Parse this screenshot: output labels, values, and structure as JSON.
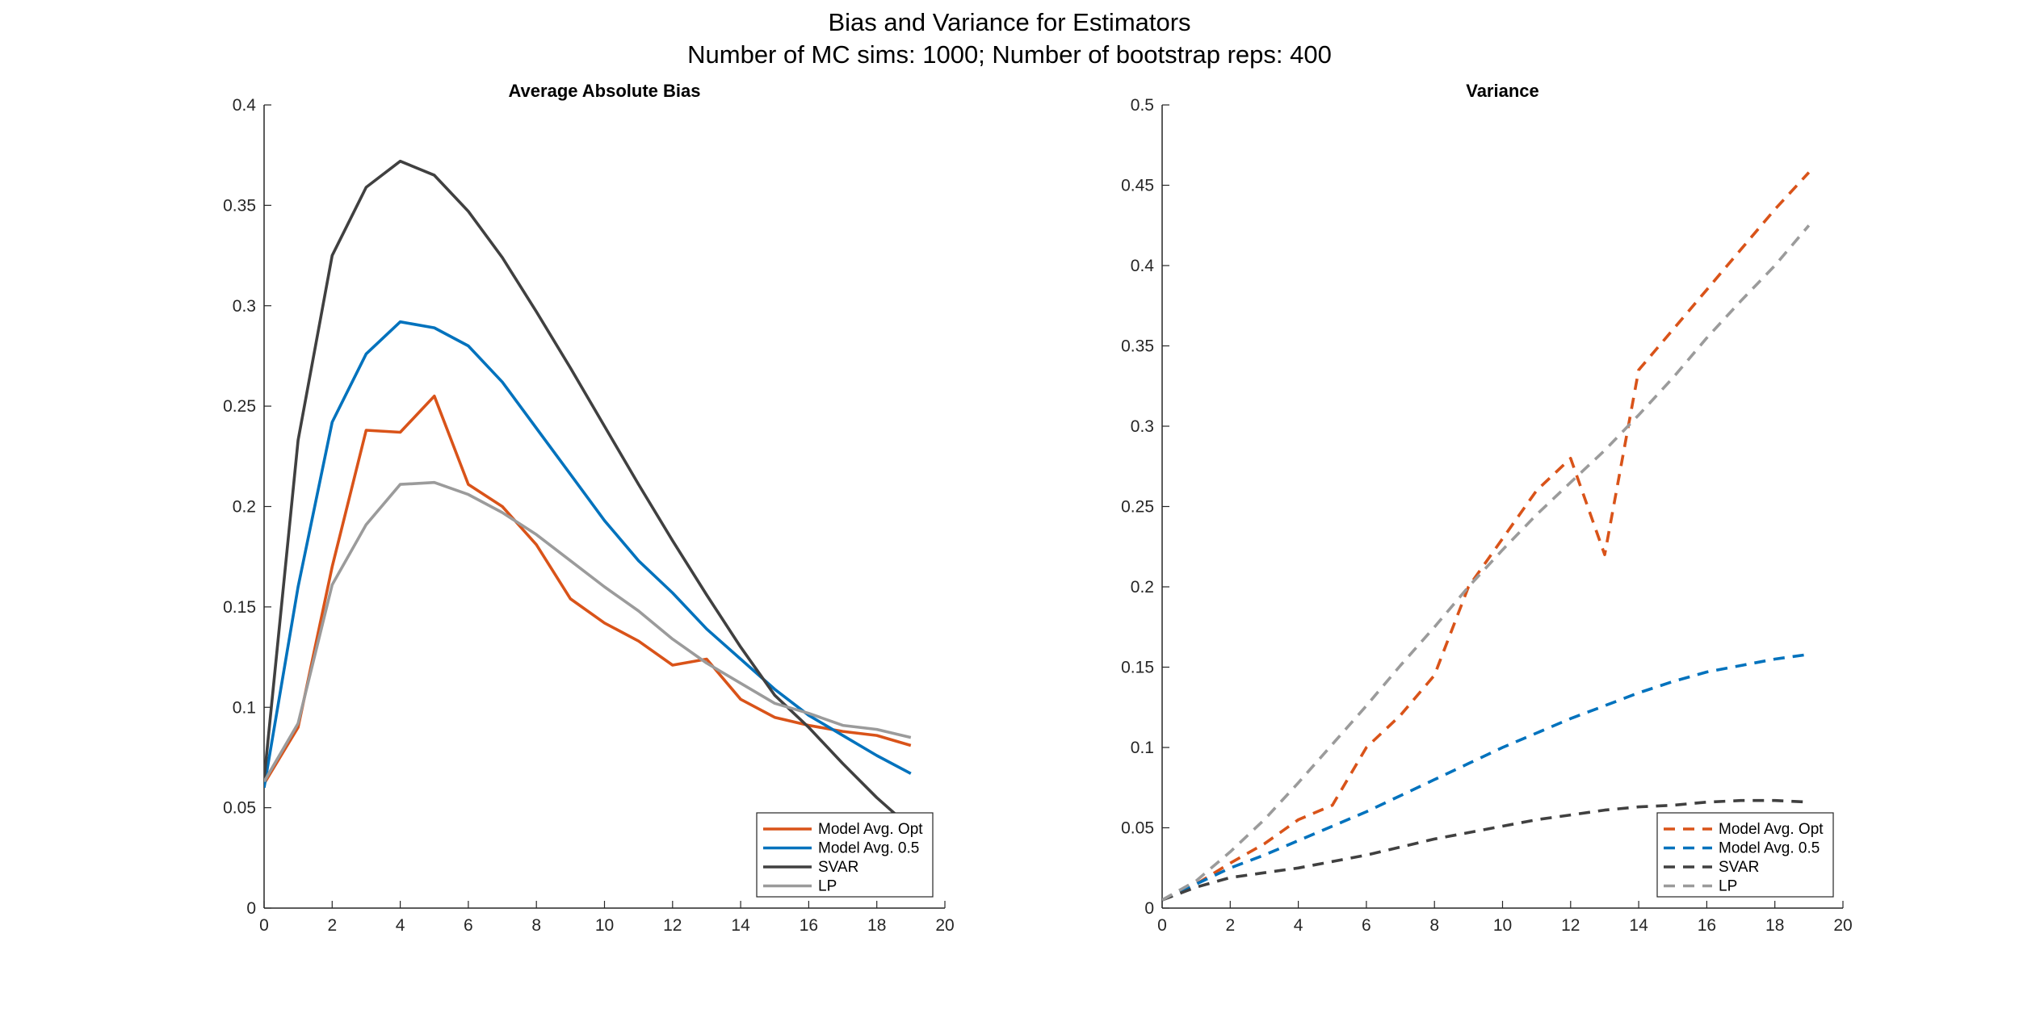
{
  "figure": {
    "title_line1": "Bias and Variance for Estimators",
    "title_line2": "Number of MC sims: 1000; Number of bootstrap reps: 400"
  },
  "colors": {
    "model_avg_opt": "#D95319",
    "model_avg_05": "#0072BD",
    "svar": "#404040",
    "lp": "#9B9B9B",
    "axis": "#262626"
  },
  "chart_data": [
    {
      "type": "line",
      "title": "Average Absolute Bias",
      "xlabel": "",
      "ylabel": "",
      "xlim": [
        0,
        20
      ],
      "ylim": [
        0,
        0.4
      ],
      "xticks": [
        0,
        2,
        4,
        6,
        8,
        10,
        12,
        14,
        16,
        18,
        20
      ],
      "yticks": [
        0,
        0.05,
        0.1,
        0.15,
        0.2,
        0.25,
        0.3,
        0.35,
        0.4
      ],
      "line_style": "solid",
      "legend_position": "bottom-right",
      "x": [
        0,
        1,
        2,
        3,
        4,
        5,
        6,
        7,
        8,
        9,
        10,
        11,
        12,
        13,
        14,
        15,
        16,
        17,
        18,
        19
      ],
      "series": [
        {
          "name": "Model Avg. Opt",
          "color": "#D95319",
          "values": [
            0.062,
            0.09,
            0.17,
            0.238,
            0.237,
            0.255,
            0.211,
            0.2,
            0.181,
            0.154,
            0.142,
            0.133,
            0.121,
            0.124,
            0.104,
            0.095,
            0.091,
            0.088,
            0.086,
            0.081
          ]
        },
        {
          "name": "Model Avg. 0.5",
          "color": "#0072BD",
          "values": [
            0.06,
            0.16,
            0.242,
            0.276,
            0.292,
            0.289,
            0.28,
            0.262,
            0.239,
            0.216,
            0.193,
            0.173,
            0.157,
            0.139,
            0.124,
            0.109,
            0.096,
            0.086,
            0.076,
            0.067
          ]
        },
        {
          "name": "SVAR",
          "color": "#404040",
          "values": [
            0.064,
            0.233,
            0.325,
            0.359,
            0.372,
            0.365,
            0.347,
            0.324,
            0.297,
            0.269,
            0.24,
            0.211,
            0.183,
            0.156,
            0.13,
            0.106,
            0.09,
            0.072,
            0.055,
            0.04
          ]
        },
        {
          "name": "LP",
          "color": "#9B9B9B",
          "values": [
            0.063,
            0.092,
            0.161,
            0.191,
            0.211,
            0.212,
            0.206,
            0.197,
            0.186,
            0.173,
            0.16,
            0.148,
            0.134,
            0.122,
            0.112,
            0.102,
            0.097,
            0.091,
            0.089,
            0.085
          ]
        }
      ]
    },
    {
      "type": "line",
      "title": "Variance",
      "xlabel": "",
      "ylabel": "",
      "xlim": [
        0,
        20
      ],
      "ylim": [
        0,
        0.5
      ],
      "xticks": [
        0,
        2,
        4,
        6,
        8,
        10,
        12,
        14,
        16,
        18,
        20
      ],
      "yticks": [
        0,
        0.05,
        0.1,
        0.15,
        0.2,
        0.25,
        0.3,
        0.35,
        0.4,
        0.45,
        0.5
      ],
      "line_style": "dashed",
      "legend_position": "bottom-right",
      "x": [
        0,
        1,
        2,
        3,
        4,
        5,
        6,
        7,
        8,
        9,
        10,
        11,
        12,
        13,
        14,
        15,
        16,
        17,
        18,
        19
      ],
      "series": [
        {
          "name": "Model Avg. Opt",
          "color": "#D95319",
          "values": [
            0.005,
            0.015,
            0.028,
            0.04,
            0.055,
            0.064,
            0.1,
            0.12,
            0.145,
            0.2,
            0.23,
            0.26,
            0.28,
            0.22,
            0.335,
            0.36,
            0.385,
            0.41,
            0.435,
            0.458
          ]
        },
        {
          "name": "Model Avg. 0.5",
          "color": "#0072BD",
          "values": [
            0.005,
            0.015,
            0.025,
            0.033,
            0.042,
            0.051,
            0.06,
            0.07,
            0.08,
            0.09,
            0.1,
            0.109,
            0.118,
            0.126,
            0.134,
            0.141,
            0.147,
            0.151,
            0.155,
            0.158
          ]
        },
        {
          "name": "SVAR",
          "color": "#404040",
          "values": [
            0.005,
            0.013,
            0.019,
            0.022,
            0.025,
            0.029,
            0.033,
            0.038,
            0.043,
            0.047,
            0.051,
            0.055,
            0.058,
            0.061,
            0.063,
            0.064,
            0.066,
            0.067,
            0.067,
            0.066
          ]
        },
        {
          "name": "LP",
          "color": "#9B9B9B",
          "values": [
            0.005,
            0.017,
            0.035,
            0.055,
            0.078,
            0.102,
            0.126,
            0.151,
            0.175,
            0.2,
            0.223,
            0.245,
            0.265,
            0.285,
            0.307,
            0.33,
            0.355,
            0.378,
            0.4,
            0.425
          ]
        }
      ]
    }
  ]
}
